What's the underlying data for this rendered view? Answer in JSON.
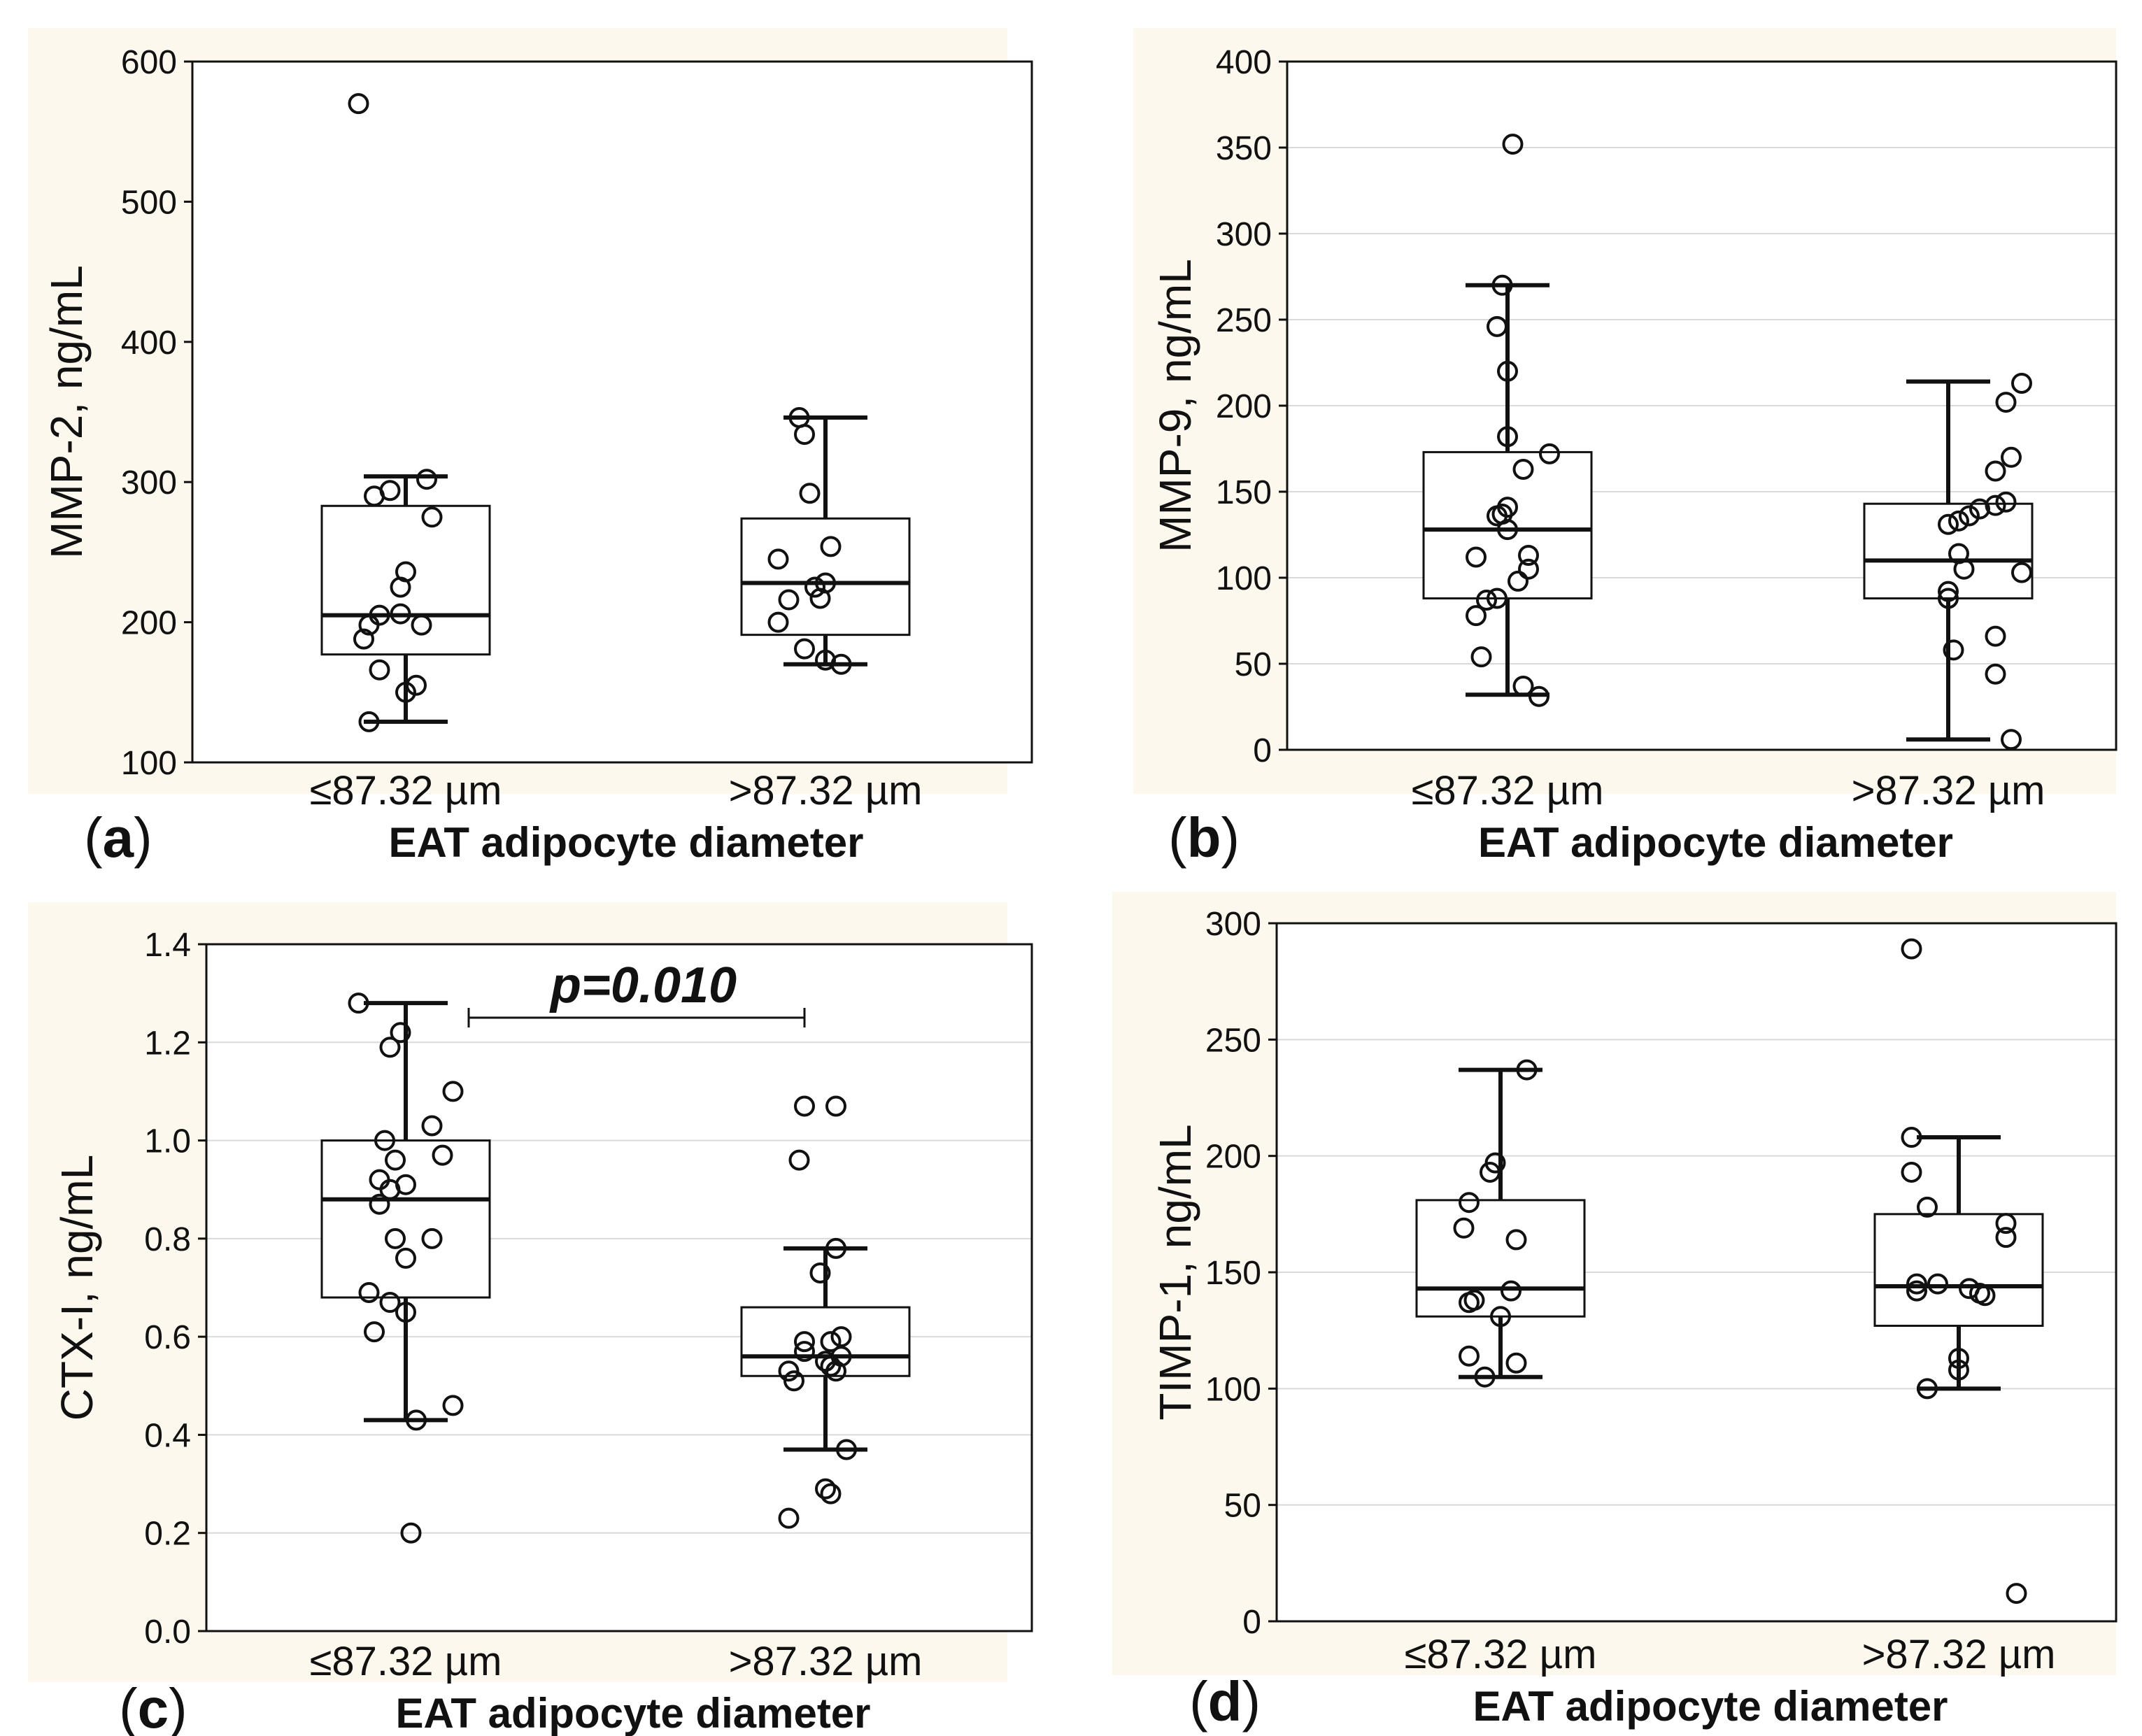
{
  "colors": {
    "panel_background": "#fdf8ee",
    "plot_background": "#ffffff",
    "ink": "#111111",
    "grid": "#d9d9d9"
  },
  "chart_data": [
    {
      "type": "box",
      "panel_label": "a",
      "ylabel": "MMP-2, ng/mL",
      "xlabel": "EAT adipocyte diameter",
      "categories": [
        "≤87.32 µm",
        ">87.32 µm"
      ],
      "ylim": [
        100,
        600
      ],
      "yticks": [
        100,
        200,
        300,
        400,
        500,
        600
      ],
      "grid": false,
      "boxes": [
        {
          "whisker_low": 129,
          "q1": 177,
          "median": 205,
          "q3": 283,
          "whisker_high": 304
        },
        {
          "whisker_low": 170,
          "q1": 191,
          "median": 228,
          "q3": 274,
          "whisker_high": 346
        }
      ],
      "points": [
        [
          [
            -0.45,
            570
          ],
          [
            -0.3,
            290
          ],
          [
            -0.15,
            294
          ],
          [
            0.2,
            302
          ],
          [
            0.25,
            275
          ],
          [
            0.0,
            236
          ],
          [
            -0.05,
            225
          ],
          [
            -0.25,
            205
          ],
          [
            -0.05,
            206
          ],
          [
            -0.35,
            198
          ],
          [
            0.15,
            198
          ],
          [
            -0.4,
            188
          ],
          [
            -0.25,
            166
          ],
          [
            0.0,
            150
          ],
          [
            0.1,
            155
          ],
          [
            -0.35,
            129
          ]
        ],
        [
          [
            -0.25,
            346
          ],
          [
            -0.2,
            334
          ],
          [
            -0.15,
            292
          ],
          [
            0.05,
            254
          ],
          [
            -0.45,
            245
          ],
          [
            0.0,
            228
          ],
          [
            -0.1,
            225
          ],
          [
            -0.35,
            216
          ],
          [
            -0.05,
            217
          ],
          [
            -0.45,
            200
          ],
          [
            -0.2,
            181
          ],
          [
            0.0,
            173
          ],
          [
            0.15,
            170
          ]
        ]
      ]
    },
    {
      "type": "box",
      "panel_label": "b",
      "ylabel": "MMP-9, ng/mL",
      "xlabel": "EAT adipocyte diameter",
      "categories": [
        "≤87.32 µm",
        ">87.32 µm"
      ],
      "ylim": [
        0,
        400
      ],
      "yticks": [
        0,
        50,
        100,
        150,
        200,
        250,
        300,
        350,
        400
      ],
      "grid": true,
      "boxes": [
        {
          "whisker_low": 32,
          "q1": 88,
          "median": 128,
          "q3": 173,
          "whisker_high": 270
        },
        {
          "whisker_low": 6,
          "q1": 88,
          "median": 110,
          "q3": 143,
          "whisker_high": 214
        }
      ],
      "points": [
        [
          [
            0.05,
            352
          ],
          [
            -0.05,
            270
          ],
          [
            -0.1,
            246
          ],
          [
            0.0,
            220
          ],
          [
            0.0,
            182
          ],
          [
            0.4,
            172
          ],
          [
            0.15,
            163
          ],
          [
            -0.1,
            136
          ],
          [
            -0.05,
            137
          ],
          [
            0.0,
            141
          ],
          [
            0.0,
            128
          ],
          [
            -0.3,
            112
          ],
          [
            0.2,
            113
          ],
          [
            0.2,
            105
          ],
          [
            0.1,
            98
          ],
          [
            -0.1,
            88
          ],
          [
            -0.2,
            87
          ],
          [
            -0.3,
            78
          ],
          [
            -0.25,
            54
          ],
          [
            0.15,
            37
          ],
          [
            0.3,
            31
          ]
        ],
        [
          [
            0.7,
            213
          ],
          [
            0.55,
            202
          ],
          [
            0.6,
            170
          ],
          [
            0.45,
            162
          ],
          [
            0.45,
            142
          ],
          [
            0.3,
            140
          ],
          [
            0.2,
            136
          ],
          [
            0.1,
            133
          ],
          [
            0.0,
            131
          ],
          [
            0.55,
            144
          ],
          [
            0.1,
            114
          ],
          [
            0.15,
            105
          ],
          [
            0.7,
            103
          ],
          [
            0.0,
            92
          ],
          [
            0.0,
            88
          ],
          [
            0.45,
            66
          ],
          [
            0.05,
            58
          ],
          [
            0.45,
            44
          ],
          [
            0.6,
            6
          ]
        ]
      ]
    },
    {
      "type": "box",
      "panel_label": "c",
      "ylabel": "CTX-I, ng/mL",
      "xlabel": "EAT adipocyte diameter",
      "categories": [
        "≤87.32 µm",
        ">87.32 µm"
      ],
      "ylim": [
        0.0,
        1.4
      ],
      "yticks": [
        0.0,
        0.2,
        0.4,
        0.6,
        0.8,
        1.0,
        1.2,
        1.4
      ],
      "ytick_labels": [
        "0.0",
        "0.2",
        "0.4",
        "0.6",
        "0.8",
        "1.0",
        "1.2",
        "1.4"
      ],
      "grid": true,
      "boxes": [
        {
          "whisker_low": 0.43,
          "q1": 0.68,
          "median": 0.88,
          "q3": 1.0,
          "whisker_high": 1.28
        },
        {
          "whisker_low": 0.37,
          "q1": 0.52,
          "median": 0.56,
          "q3": 0.66,
          "whisker_high": 0.78
        }
      ],
      "annotation": {
        "text": "p=0.010",
        "span": [
          0,
          1
        ]
      },
      "points": [
        [
          [
            -0.45,
            1.28
          ],
          [
            -0.05,
            1.22
          ],
          [
            -0.15,
            1.19
          ],
          [
            0.45,
            1.1
          ],
          [
            0.25,
            1.03
          ],
          [
            -0.2,
            1.0
          ],
          [
            0.35,
            0.97
          ],
          [
            -0.1,
            0.96
          ],
          [
            -0.25,
            0.92
          ],
          [
            -0.15,
            0.9
          ],
          [
            0.0,
            0.91
          ],
          [
            -0.25,
            0.87
          ],
          [
            -0.1,
            0.8
          ],
          [
            0.25,
            0.8
          ],
          [
            0.0,
            0.76
          ],
          [
            -0.35,
            0.69
          ],
          [
            -0.15,
            0.67
          ],
          [
            0.0,
            0.65
          ],
          [
            -0.3,
            0.61
          ],
          [
            0.45,
            0.46
          ],
          [
            0.1,
            0.43
          ],
          [
            0.05,
            0.2
          ]
        ],
        [
          [
            -0.2,
            1.07
          ],
          [
            0.1,
            1.07
          ],
          [
            -0.25,
            0.96
          ],
          [
            0.1,
            0.78
          ],
          [
            -0.05,
            0.73
          ],
          [
            0.15,
            0.6
          ],
          [
            -0.2,
            0.59
          ],
          [
            0.05,
            0.59
          ],
          [
            -0.2,
            0.57
          ],
          [
            0.15,
            0.56
          ],
          [
            0.0,
            0.55
          ],
          [
            0.05,
            0.54
          ],
          [
            0.1,
            0.53
          ],
          [
            -0.35,
            0.53
          ],
          [
            -0.3,
            0.51
          ],
          [
            0.2,
            0.37
          ],
          [
            0.0,
            0.29
          ],
          [
            0.05,
            0.28
          ],
          [
            -0.35,
            0.23
          ]
        ]
      ]
    },
    {
      "type": "box",
      "panel_label": "d",
      "ylabel": "TIMP-1, ng/mL",
      "xlabel": "EAT adipocyte diameter",
      "categories": [
        "≤87.32 µm",
        ">87.32 µm"
      ],
      "ylim": [
        0,
        300
      ],
      "yticks": [
        0,
        50,
        100,
        150,
        200,
        250,
        300
      ],
      "grid": true,
      "boxes": [
        {
          "whisker_low": 105,
          "q1": 131,
          "median": 143,
          "q3": 181,
          "whisker_high": 237
        },
        {
          "whisker_low": 100,
          "q1": 127,
          "median": 144,
          "q3": 175,
          "whisker_high": 208
        }
      ],
      "points": [
        [
          [
            0.25,
            237
          ],
          [
            -0.05,
            197
          ],
          [
            -0.1,
            193
          ],
          [
            -0.3,
            180
          ],
          [
            -0.35,
            169
          ],
          [
            0.15,
            164
          ],
          [
            0.1,
            142
          ],
          [
            -0.25,
            138
          ],
          [
            -0.3,
            137
          ],
          [
            0.0,
            131
          ],
          [
            -0.3,
            114
          ],
          [
            0.15,
            111
          ],
          [
            -0.15,
            105
          ]
        ],
        [
          [
            -0.45,
            289
          ],
          [
            -0.45,
            208
          ],
          [
            -0.45,
            193
          ],
          [
            -0.3,
            178
          ],
          [
            0.45,
            171
          ],
          [
            0.45,
            165
          ],
          [
            -0.2,
            145
          ],
          [
            -0.4,
            145
          ],
          [
            -0.4,
            142
          ],
          [
            0.1,
            143
          ],
          [
            0.25,
            140
          ],
          [
            0.2,
            141
          ],
          [
            0.0,
            113
          ],
          [
            0.0,
            108
          ],
          [
            -0.3,
            100
          ],
          [
            0.55,
            12
          ]
        ]
      ]
    }
  ]
}
